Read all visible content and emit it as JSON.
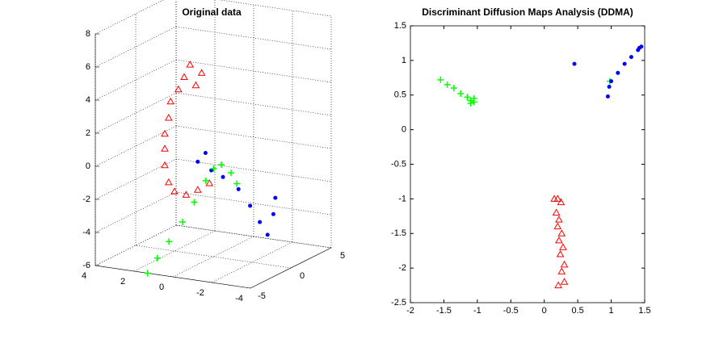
{
  "chart_data": [
    {
      "type": "scatter3d",
      "title": "Original data",
      "xlim": [
        -4,
        4
      ],
      "ylim": [
        -5,
        5
      ],
      "zlim": [
        -6,
        8
      ],
      "xticks": [
        -4,
        -2,
        0,
        2,
        4
      ],
      "yticks": [
        -5,
        0,
        5
      ],
      "zticks": [
        -6,
        -4,
        -2,
        0,
        2,
        4,
        6,
        8
      ],
      "grid": true,
      "series": [
        {
          "color": "#ff0000",
          "marker": "triangle",
          "x": [
            1.2,
            1.5,
            1.8,
            2.2,
            2.3,
            2.5,
            2.5,
            2.5,
            2.3,
            2.0,
            1.4,
            0.8,
            0.2,
            0.6,
            0.9
          ],
          "y": [
            0,
            0,
            0,
            0,
            0,
            0,
            0,
            0,
            0,
            0,
            0,
            0,
            0,
            0,
            0
          ],
          "z": [
            5.4,
            4.6,
            3.8,
            3.0,
            2.0,
            1.0,
            0.1,
            -0.9,
            -1.9,
            -2.4,
            -2.5,
            -2.1,
            -1.6,
            5.0,
            4.2
          ]
        },
        {
          "color": "#0000ff",
          "marker": "dot",
          "x": [
            0.8,
            0.4,
            0.1,
            -0.5,
            -1.3,
            -1.9,
            -2.4,
            -2.8,
            -3.1,
            -3.2
          ],
          "y": [
            0,
            0,
            0,
            0,
            0,
            0,
            0,
            0,
            0,
            0
          ],
          "z": [
            -0.4,
            0.2,
            -0.8,
            -1.1,
            -1.7,
            -2.6,
            -3.5,
            -4.2,
            -2.9,
            -1.9
          ]
        },
        {
          "color": "#00ff00",
          "marker": "plus",
          "x": [
            1.3,
            0.8,
            0.2,
            -0.5,
            -1.1,
            -1.7,
            -2.1,
            -2.5,
            -3.0,
            -3.3
          ],
          "y": [
            -5,
            -5,
            -5,
            -5,
            -5,
            -5,
            -5,
            -5,
            -5,
            -5
          ],
          "z": [
            -6.0,
            -5.0,
            -3.9,
            -2.6,
            -1.3,
            0.1,
            0.9,
            1.2,
            0.8,
            0.2
          ]
        }
      ]
    },
    {
      "type": "scatter",
      "title": "Discriminant Diffusion Maps Analysis (DDMA)",
      "xlim": [
        -2,
        1.5
      ],
      "ylim": [
        -2.5,
        1.5
      ],
      "xticks": [
        -2,
        -1.5,
        -1,
        -0.5,
        0,
        0.5,
        1,
        1.5
      ],
      "yticks": [
        -2.5,
        -2,
        -1.5,
        -1,
        -0.5,
        0,
        0.5,
        1,
        1.5
      ],
      "series": [
        {
          "color": "#ff0000",
          "marker": "triangle",
          "x": [
            0.15,
            0.2,
            0.25,
            0.18,
            0.22,
            0.2,
            0.26,
            0.22,
            0.28,
            0.24,
            0.3,
            0.26,
            0.3,
            0.21
          ],
          "y": [
            -1.0,
            -1.0,
            -1.05,
            -1.2,
            -1.3,
            -1.4,
            -1.5,
            -1.6,
            -1.7,
            -1.8,
            -1.95,
            -2.05,
            -2.2,
            -2.25
          ]
        },
        {
          "color": "#00ff00",
          "marker": "plus",
          "x": [
            -1.55,
            -1.45,
            -1.35,
            -1.25,
            -1.15,
            -1.1,
            -1.05,
            -1.05,
            -1.1,
            0.98
          ],
          "y": [
            0.72,
            0.65,
            0.6,
            0.52,
            0.47,
            0.42,
            0.4,
            0.45,
            0.38,
            0.7
          ]
        },
        {
          "color": "#0000ff",
          "marker": "dot",
          "x": [
            0.45,
            0.95,
            0.97,
            1.0,
            1.1,
            1.2,
            1.3,
            1.4,
            1.45,
            1.42
          ],
          "y": [
            0.95,
            0.48,
            0.62,
            0.7,
            0.82,
            0.95,
            1.05,
            1.15,
            1.2,
            1.18
          ]
        }
      ]
    }
  ]
}
